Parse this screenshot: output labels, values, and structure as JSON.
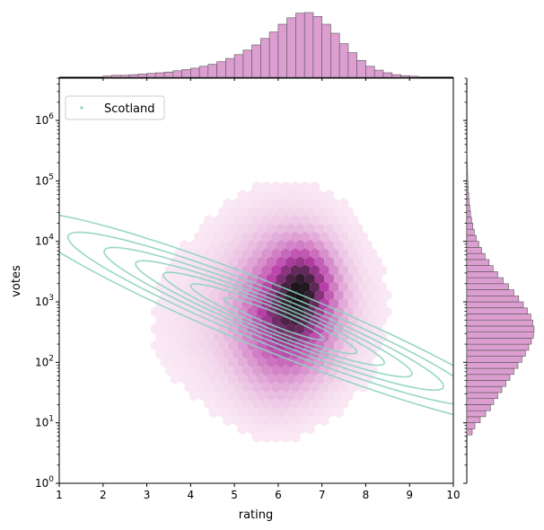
{
  "chart_data": {
    "type": "scatter",
    "xlabel": "rating",
    "ylabel": "votes",
    "xlim": [
      1,
      10
    ],
    "ylim": [
      1,
      5000000
    ],
    "y_scale": "log",
    "x_ticks": [
      "1",
      "2",
      "3",
      "4",
      "5",
      "6",
      "7",
      "8",
      "9",
      "10"
    ],
    "y_ticks": [
      {
        "base": "10",
        "exp": "0",
        "value": 1
      },
      {
        "base": "10",
        "exp": "1",
        "value": 10
      },
      {
        "base": "10",
        "exp": "2",
        "value": 100
      },
      {
        "base": "10",
        "exp": "3",
        "value": 1000
      },
      {
        "base": "10",
        "exp": "4",
        "value": 10000
      },
      {
        "base": "10",
        "exp": "5",
        "value": 100000
      },
      {
        "base": "10",
        "exp": "6",
        "value": 1000000
      }
    ],
    "legend": {
      "placement": "top-left",
      "entries": [
        "Scotland"
      ]
    },
    "series": [
      {
        "name": "Scotland",
        "kind": "kde-contours",
        "color": "#8dd3c0",
        "center": {
          "rating": 5.9,
          "log10_votes": 2.72
        },
        "slope": -0.29,
        "sd_along": 2.6,
        "sd_across": 0.24,
        "levels": [
          0.9,
          0.75,
          0.6,
          0.45,
          0.3,
          0.17,
          0.07
        ]
      }
    ],
    "hexbin": {
      "color_min": "#fdf2f8",
      "color_mid": "#b93fa8",
      "color_max": "#141414",
      "clusters": [
        {
          "rating": 6.6,
          "log10_votes": 2.95,
          "sd_rating": 0.55,
          "sd_log": 0.65,
          "weight": 1.0
        },
        {
          "rating": 5.9,
          "log10_votes": 2.7,
          "sd_rating": 0.6,
          "sd_log": 0.75,
          "weight": 0.75
        },
        {
          "rating": 6.6,
          "log10_votes": 3.4,
          "sd_rating": 0.4,
          "sd_log": 0.35,
          "weight": 0.5
        },
        {
          "rating": 6.2,
          "log10_votes": 3.0,
          "sd_rating": 1.3,
          "sd_log": 1.1,
          "weight": 0.25
        },
        {
          "rating": 5.0,
          "log10_votes": 2.6,
          "sd_rating": 1.5,
          "sd_log": 0.9,
          "weight": 0.1
        }
      ]
    },
    "marginal_x": {
      "color": "#dc9ed0",
      "bins": [
        {
          "rating": 2.1,
          "count": 0.02
        },
        {
          "rating": 2.3,
          "count": 0.03
        },
        {
          "rating": 2.5,
          "count": 0.03
        },
        {
          "rating": 2.7,
          "count": 0.04
        },
        {
          "rating": 2.9,
          "count": 0.05
        },
        {
          "rating": 3.1,
          "count": 0.06
        },
        {
          "rating": 3.3,
          "count": 0.07
        },
        {
          "rating": 3.5,
          "count": 0.08
        },
        {
          "rating": 3.7,
          "count": 0.1
        },
        {
          "rating": 3.9,
          "count": 0.12
        },
        {
          "rating": 4.1,
          "count": 0.14
        },
        {
          "rating": 4.3,
          "count": 0.17
        },
        {
          "rating": 4.5,
          "count": 0.2
        },
        {
          "rating": 4.7,
          "count": 0.24
        },
        {
          "rating": 4.9,
          "count": 0.29
        },
        {
          "rating": 5.1,
          "count": 0.35
        },
        {
          "rating": 5.3,
          "count": 0.42
        },
        {
          "rating": 5.5,
          "count": 0.5
        },
        {
          "rating": 5.7,
          "count": 0.6
        },
        {
          "rating": 5.9,
          "count": 0.7
        },
        {
          "rating": 6.1,
          "count": 0.82
        },
        {
          "rating": 6.3,
          "count": 0.92
        },
        {
          "rating": 6.5,
          "count": 0.99
        },
        {
          "rating": 6.7,
          "count": 1.0
        },
        {
          "rating": 6.9,
          "count": 0.94
        },
        {
          "rating": 7.1,
          "count": 0.82
        },
        {
          "rating": 7.3,
          "count": 0.68
        },
        {
          "rating": 7.5,
          "count": 0.52
        },
        {
          "rating": 7.7,
          "count": 0.38
        },
        {
          "rating": 7.9,
          "count": 0.26
        },
        {
          "rating": 8.1,
          "count": 0.17
        },
        {
          "rating": 8.3,
          "count": 0.11
        },
        {
          "rating": 8.5,
          "count": 0.07
        },
        {
          "rating": 8.7,
          "count": 0.04
        },
        {
          "rating": 8.9,
          "count": 0.025
        },
        {
          "rating": 9.1,
          "count": 0.015
        }
      ]
    },
    "marginal_y": {
      "color": "#dc9ed0",
      "bins": [
        {
          "log10_votes": 0.85,
          "count": 0.08
        },
        {
          "log10_votes": 0.95,
          "count": 0.12
        },
        {
          "log10_votes": 1.05,
          "count": 0.2
        },
        {
          "log10_votes": 1.15,
          "count": 0.28
        },
        {
          "log10_votes": 1.25,
          "count": 0.35
        },
        {
          "log10_votes": 1.35,
          "count": 0.4
        },
        {
          "log10_votes": 1.45,
          "count": 0.46
        },
        {
          "log10_votes": 1.55,
          "count": 0.52
        },
        {
          "log10_votes": 1.65,
          "count": 0.58
        },
        {
          "log10_votes": 1.75,
          "count": 0.64
        },
        {
          "log10_votes": 1.85,
          "count": 0.7
        },
        {
          "log10_votes": 1.95,
          "count": 0.76
        },
        {
          "log10_votes": 2.05,
          "count": 0.82
        },
        {
          "log10_votes": 2.15,
          "count": 0.87
        },
        {
          "log10_votes": 2.25,
          "count": 0.92
        },
        {
          "log10_votes": 2.35,
          "count": 0.96
        },
        {
          "log10_votes": 2.45,
          "count": 0.99
        },
        {
          "log10_votes": 2.55,
          "count": 1.0
        },
        {
          "log10_votes": 2.65,
          "count": 0.98
        },
        {
          "log10_votes": 2.75,
          "count": 0.95
        },
        {
          "log10_votes": 2.85,
          "count": 0.9
        },
        {
          "log10_votes": 2.95,
          "count": 0.84
        },
        {
          "log10_votes": 3.05,
          "count": 0.77
        },
        {
          "log10_votes": 3.15,
          "count": 0.7
        },
        {
          "log10_votes": 3.25,
          "count": 0.62
        },
        {
          "log10_votes": 3.35,
          "count": 0.54
        },
        {
          "log10_votes": 3.45,
          "count": 0.46
        },
        {
          "log10_votes": 3.55,
          "count": 0.39
        },
        {
          "log10_votes": 3.65,
          "count": 0.33
        },
        {
          "log10_votes": 3.75,
          "count": 0.27
        },
        {
          "log10_votes": 3.85,
          "count": 0.22
        },
        {
          "log10_votes": 3.95,
          "count": 0.18
        },
        {
          "log10_votes": 4.05,
          "count": 0.14
        },
        {
          "log10_votes": 4.15,
          "count": 0.11
        },
        {
          "log10_votes": 4.25,
          "count": 0.09
        },
        {
          "log10_votes": 4.35,
          "count": 0.07
        },
        {
          "log10_votes": 4.45,
          "count": 0.055
        },
        {
          "log10_votes": 4.55,
          "count": 0.045
        },
        {
          "log10_votes": 4.65,
          "count": 0.035
        },
        {
          "log10_votes": 4.75,
          "count": 0.028
        },
        {
          "log10_votes": 4.85,
          "count": 0.022
        },
        {
          "log10_votes": 4.95,
          "count": 0.017
        },
        {
          "log10_votes": 5.05,
          "count": 0.013
        },
        {
          "log10_votes": 5.15,
          "count": 0.01
        },
        {
          "log10_votes": 5.25,
          "count": 0.008
        },
        {
          "log10_votes": 5.35,
          "count": 0.006
        },
        {
          "log10_votes": 5.45,
          "count": 0.005
        }
      ]
    }
  }
}
